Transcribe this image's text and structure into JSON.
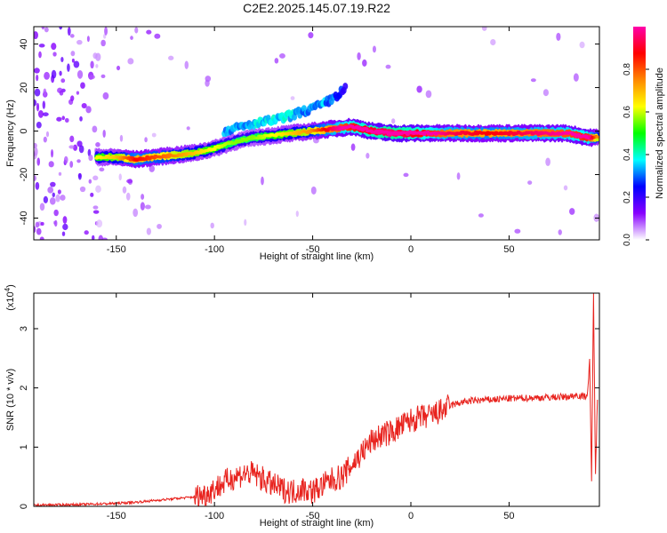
{
  "title": "C2E2.2025.145.07.19.R22",
  "chart_data": [
    {
      "type": "heatmap",
      "title": "C2E2.2025.145.07.19.R22",
      "xlabel": "Height of straight line (km)",
      "ylabel": "Frequency (Hz)",
      "xlim": [
        -192,
        96
      ],
      "ylim": [
        -50,
        48
      ],
      "x_ticks": [
        -150,
        -100,
        -50,
        0,
        50
      ],
      "y_ticks": [
        -40,
        -20,
        0,
        20,
        40
      ],
      "colorbar": {
        "label": "Normalized spectral amplitude",
        "range": [
          0,
          1
        ],
        "ticks": [
          0.0,
          0.2,
          0.4,
          0.6,
          0.8
        ],
        "colormap": [
          "#ffffff",
          "#8800ff",
          "#0000ff",
          "#00ffff",
          "#00ff00",
          "#ffff00",
          "#ff8800",
          "#ff0000",
          "#ff00aa"
        ]
      },
      "ridge": {
        "x": [
          -160,
          -150,
          -140,
          -130,
          -120,
          -110,
          -100,
          -90,
          -80,
          -70,
          -60,
          -50,
          -40,
          -30,
          -20,
          -10,
          0,
          20,
          40,
          60,
          80,
          90,
          95
        ],
        "freq": [
          -12,
          -12,
          -13,
          -12,
          -11,
          -10,
          -8,
          -5,
          -3,
          -2,
          -1,
          0,
          1,
          2,
          0,
          -1,
          -1,
          -1,
          -1,
          -1,
          -1,
          -3,
          -3
        ],
        "amplitude": [
          0.5,
          0.55,
          0.7,
          0.65,
          0.6,
          0.55,
          0.5,
          0.45,
          0.45,
          0.5,
          0.55,
          0.6,
          0.75,
          0.85,
          0.9,
          0.95,
          0.9,
          0.75,
          0.7,
          0.75,
          0.8,
          0.85,
          0.6
        ]
      },
      "upper_branch": {
        "x": [
          -95,
          -85,
          -75,
          -65,
          -55,
          -45,
          -38,
          -33
        ],
        "freq": [
          0,
          2,
          4,
          6,
          9,
          12,
          16,
          20
        ],
        "amplitude": [
          0.35,
          0.35,
          0.4,
          0.4,
          0.35,
          0.35,
          0.3,
          0.2
        ]
      }
    },
    {
      "type": "line",
      "xlabel": "Height of straight line (km)",
      "ylabel": "SNR (10 * v/v)",
      "y_multiplier": "(x10^4)",
      "xlim": [
        -192,
        96
      ],
      "ylim": [
        0,
        3.6
      ],
      "x_ticks": [
        -150,
        -100,
        -50,
        0,
        50
      ],
      "y_ticks": [
        0,
        1,
        2,
        3
      ],
      "color": "#e8231e",
      "series": [
        {
          "x": [
            -192,
            -170,
            -150,
            -140,
            -130,
            -120,
            -110,
            -105,
            -100,
            -95,
            -90,
            -85,
            -80,
            -75,
            -70,
            -65,
            -60,
            -55,
            -50,
            -45,
            -40,
            -35,
            -30,
            -25,
            -20,
            -15,
            -10,
            -5,
            0,
            5,
            10,
            15,
            20,
            25,
            30,
            40,
            50,
            60,
            70,
            80,
            85,
            88,
            90,
            91,
            92,
            93,
            94,
            95
          ],
          "y": [
            0.02,
            0.03,
            0.05,
            0.07,
            0.1,
            0.13,
            0.16,
            0.2,
            0.3,
            0.4,
            0.5,
            0.55,
            0.55,
            0.45,
            0.35,
            0.28,
            0.25,
            0.3,
            0.25,
            0.35,
            0.45,
            0.5,
            0.7,
            0.9,
            1.1,
            1.2,
            1.25,
            1.35,
            1.45,
            1.5,
            1.52,
            1.6,
            1.7,
            1.75,
            1.78,
            1.8,
            1.82,
            1.83,
            1.84,
            1.85,
            1.88,
            1.85,
            1.9,
            2.5,
            0.4,
            3.6,
            0.5,
            1.8
          ]
        }
      ]
    }
  ]
}
